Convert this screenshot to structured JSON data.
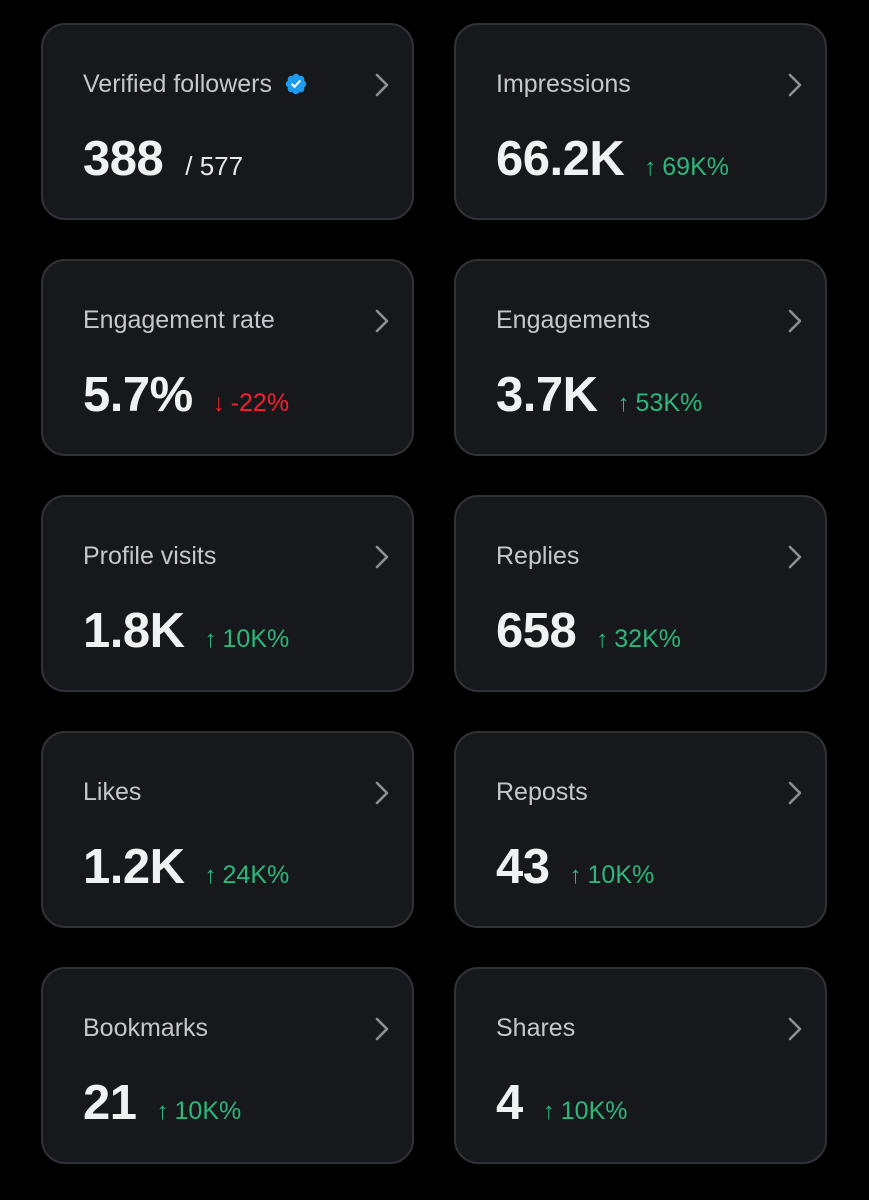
{
  "colors": {
    "background": "#000000",
    "card": "#16181c",
    "card_border": "#2f3336",
    "positive": "#2db77b",
    "negative": "#f4212e",
    "verified_badge": "#1d9bf0"
  },
  "cards": [
    {
      "title": "Verified followers",
      "value": "388",
      "total": "/ 577",
      "icon": "verified-badge-icon"
    },
    {
      "title": "Impressions",
      "value": "66.2K",
      "arrow": "↑",
      "change": "69K%",
      "trend": "up"
    },
    {
      "title": "Engagement rate",
      "value": "5.7%",
      "arrow": "↓",
      "change": "-22%",
      "trend": "down"
    },
    {
      "title": "Engagements",
      "value": "3.7K",
      "arrow": "↑",
      "change": "53K%",
      "trend": "up"
    },
    {
      "title": "Profile visits",
      "value": "1.8K",
      "arrow": "↑",
      "change": "10K%",
      "trend": "up"
    },
    {
      "title": "Replies",
      "value": "658",
      "arrow": "↑",
      "change": "32K%",
      "trend": "up"
    },
    {
      "title": "Likes",
      "value": "1.2K",
      "arrow": "↑",
      "change": "24K%",
      "trend": "up"
    },
    {
      "title": "Reposts",
      "value": "43",
      "arrow": "↑",
      "change": "10K%",
      "trend": "up"
    },
    {
      "title": "Bookmarks",
      "value": "21",
      "arrow": "↑",
      "change": "10K%",
      "trend": "up"
    },
    {
      "title": "Shares",
      "value": "4",
      "arrow": "↑",
      "change": "10K%",
      "trend": "up"
    }
  ]
}
